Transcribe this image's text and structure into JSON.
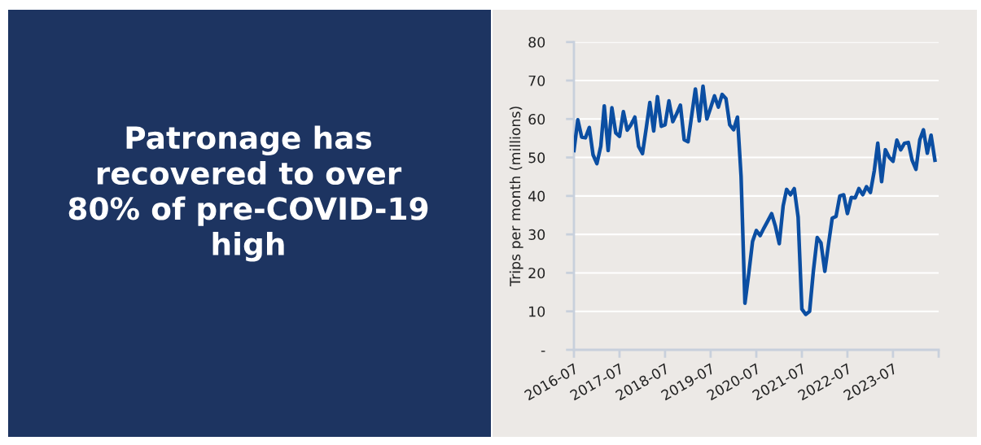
{
  "chart_data": {
    "type": "line",
    "title": "Patronage has\nrecovered to over\n80% of pre-COVID-19\nhigh",
    "ylabel": "Trips per month (millions)",
    "series": [
      {
        "color": "#0b4ea2",
        "x": [
          "2016-07",
          "2016-08",
          "2016-09",
          "2016-10",
          "2016-11",
          "2016-12",
          "2017-01",
          "2017-02",
          "2017-03",
          "2017-04",
          "2017-05",
          "2017-06",
          "2017-07",
          "2017-08",
          "2017-09",
          "2017-10",
          "2017-11",
          "2017-12",
          "2018-01",
          "2018-02",
          "2018-03",
          "2018-04",
          "2018-05",
          "2018-06",
          "2018-07",
          "2018-08",
          "2018-09",
          "2018-10",
          "2018-11",
          "2018-12",
          "2019-01",
          "2019-02",
          "2019-03",
          "2019-04",
          "2019-05",
          "2019-06",
          "2019-07",
          "2019-08",
          "2019-09",
          "2019-10",
          "2019-11",
          "2019-12",
          "2020-01",
          "2020-02",
          "2020-03",
          "2020-04",
          "2020-05",
          "2020-06",
          "2020-07",
          "2020-08",
          "2020-09",
          "2020-10",
          "2020-11",
          "2020-12",
          "2021-01",
          "2021-02",
          "2021-03",
          "2021-04",
          "2021-05",
          "2021-06",
          "2021-07",
          "2021-08",
          "2021-09",
          "2021-10",
          "2021-11",
          "2021-12",
          "2022-01",
          "2022-02",
          "2022-03",
          "2022-04",
          "2022-05",
          "2022-06",
          "2022-07",
          "2022-08",
          "2022-09",
          "2022-10",
          "2022-11",
          "2022-12",
          "2023-01",
          "2023-02",
          "2023-03",
          "2023-04",
          "2023-05",
          "2023-06",
          "2023-07",
          "2023-08",
          "2023-09",
          "2023-10",
          "2023-11",
          "2023-12",
          "2024-01",
          "2024-02",
          "2024-03",
          "2024-04",
          "2024-05",
          "2024-06"
        ],
        "values": [
          51.8,
          59.8,
          55.3,
          55.1,
          57.8,
          50.7,
          48.4,
          52.9,
          63.4,
          51.8,
          62.9,
          56.4,
          55.5,
          61.9,
          57.1,
          58.5,
          60.5,
          52.9,
          51.0,
          57.8,
          64.3,
          56.9,
          65.8,
          58.1,
          58.5,
          64.7,
          59.3,
          61.3,
          63.6,
          54.6,
          54.1,
          61.3,
          67.8,
          59.5,
          68.5,
          60.0,
          62.9,
          66.0,
          63.1,
          66.4,
          65.3,
          58.5,
          57.2,
          60.5,
          45.1,
          12.1,
          19.7,
          28.2,
          31.0,
          29.7,
          31.7,
          33.5,
          35.4,
          32.1,
          27.6,
          37.4,
          41.7,
          40.3,
          41.9,
          34.5,
          10.6,
          9.2,
          10.0,
          20.4,
          29.2,
          27.8,
          20.4,
          27.8,
          34.2,
          34.7,
          40.0,
          40.3,
          35.4,
          39.6,
          39.5,
          41.9,
          40.3,
          42.4,
          40.9,
          46.5,
          53.7,
          43.7,
          52.0,
          50.0,
          49.0,
          54.5,
          52.0,
          53.7,
          53.9,
          49.3,
          46.9,
          54.6,
          57.2,
          51.1,
          55.8,
          49.3
        ]
      }
    ],
    "xlim": [
      "2016-07",
      "2024-07"
    ],
    "xticks": [
      "2016-07",
      "2017-07",
      "2018-07",
      "2019-07",
      "2020-07",
      "2021-07",
      "2022-07",
      "2023-07",
      {
        "value": "2024-07",
        "label": null
      }
    ],
    "ylim": [
      0,
      80
    ],
    "yticks": [
      {
        "value": 0,
        "label": "-"
      },
      10,
      20,
      30,
      40,
      50,
      60,
      70,
      80
    ],
    "grid": "y",
    "marker": "none",
    "line_style": "solid"
  }
}
